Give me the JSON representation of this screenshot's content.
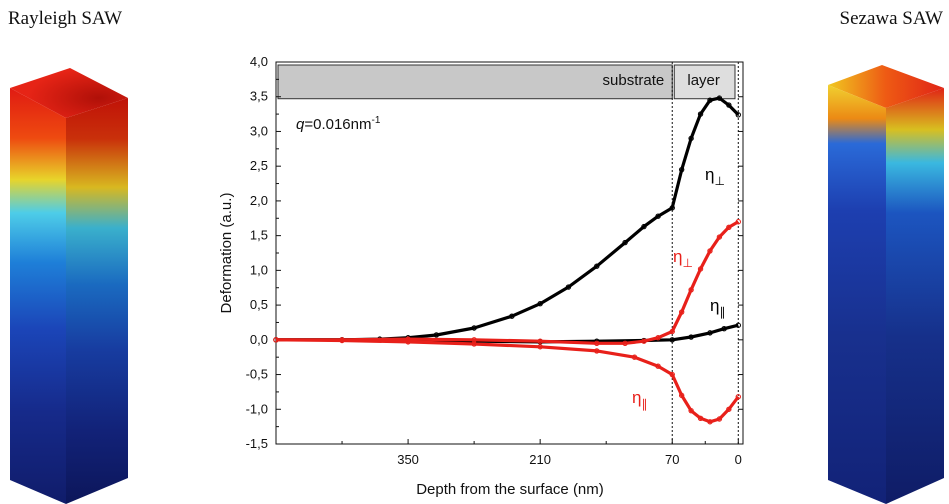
{
  "titles": {
    "left": "Rayleigh SAW",
    "right": "Sezawa SAW"
  },
  "chart_data": {
    "type": "line",
    "xlabel": "Depth from the surface (nm)",
    "ylabel": "Deformation (a.u.)",
    "xlim": [
      490,
      -5
    ],
    "ylim": [
      -1.5,
      4.0
    ],
    "x_ticks": [
      350,
      210,
      70,
      0
    ],
    "x_tick_labels": [
      "350",
      "210",
      "70",
      "0"
    ],
    "y_ticks": [
      -1.5,
      -1.0,
      -0.5,
      0.0,
      0.5,
      1.0,
      1.5,
      2.0,
      2.5,
      3.0,
      3.5,
      4.0
    ],
    "y_tick_labels": [
      "-1,5",
      "-1,0",
      "-0,5",
      "0,0",
      "0,5",
      "1,0",
      "1,5",
      "2,0",
      "2,5",
      "3,0",
      "3,5",
      "4,0"
    ],
    "grid": false,
    "annotation": {
      "q_symbol": "q",
      "q_value": "=0.016nm",
      "q_exp": "-1"
    },
    "regions": [
      {
        "label": "substrate",
        "from": 490,
        "to": 70
      },
      {
        "label": "layer",
        "from": 70,
        "to": 0
      }
    ],
    "interface_depths": [
      70,
      0
    ],
    "series": [
      {
        "name": "η⊥",
        "symbol": "η",
        "subscript": "⊥",
        "color": "#000000",
        "x": [
          490,
          420,
          380,
          350,
          320,
          280,
          240,
          210,
          180,
          150,
          120,
          100,
          85,
          70,
          60,
          50,
          40,
          30,
          20,
          10,
          0
        ],
        "y": [
          0.0,
          0.0,
          0.01,
          0.03,
          0.07,
          0.17,
          0.34,
          0.52,
          0.76,
          1.06,
          1.4,
          1.63,
          1.78,
          1.9,
          2.45,
          2.9,
          3.25,
          3.45,
          3.48,
          3.38,
          3.24
        ]
      },
      {
        "name": "η∥",
        "symbol": "η",
        "subscript": "∥",
        "color": "#000000",
        "x": [
          490,
          420,
          350,
          280,
          210,
          150,
          100,
          70,
          50,
          30,
          15,
          0
        ],
        "y": [
          0.0,
          0.0,
          -0.01,
          -0.02,
          -0.03,
          -0.02,
          -0.01,
          0.0,
          0.04,
          0.1,
          0.16,
          0.21
        ]
      },
      {
        "name": "η⊥",
        "symbol": "η",
        "subscript": "⊥",
        "color": "#e8201a",
        "x": [
          490,
          420,
          350,
          280,
          210,
          150,
          120,
          100,
          85,
          70,
          60,
          50,
          40,
          30,
          20,
          10,
          0
        ],
        "y": [
          0.0,
          0.0,
          0.01,
          0.0,
          -0.02,
          -0.05,
          -0.05,
          -0.02,
          0.03,
          0.12,
          0.4,
          0.72,
          1.02,
          1.28,
          1.48,
          1.62,
          1.7
        ]
      },
      {
        "name": "η∥",
        "symbol": "η",
        "subscript": "∥",
        "color": "#e8201a",
        "x": [
          490,
          420,
          350,
          280,
          210,
          150,
          110,
          85,
          70,
          60,
          50,
          40,
          30,
          20,
          10,
          0
        ],
        "y": [
          0.0,
          -0.01,
          -0.03,
          -0.06,
          -0.1,
          -0.16,
          -0.25,
          -0.38,
          -0.5,
          -0.8,
          -1.02,
          -1.13,
          -1.18,
          -1.14,
          -1.0,
          -0.82
        ]
      }
    ],
    "series_label_positions": [
      "upper-right",
      "lower-right",
      "middle-right",
      "bottom-right"
    ]
  },
  "bars": {
    "left": {
      "colors": [
        "#e01b12",
        "#f07a10",
        "#e8d42a",
        "#4ecde8",
        "#1e7fd8",
        "#1b45b8",
        "#162a8a",
        "#101c6a"
      ]
    },
    "right": {
      "colors": [
        "#f0c820",
        "#e88a14",
        "#e02416",
        "#2a6ad8",
        "#1d3fb0",
        "#18308e",
        "#122277"
      ]
    }
  }
}
